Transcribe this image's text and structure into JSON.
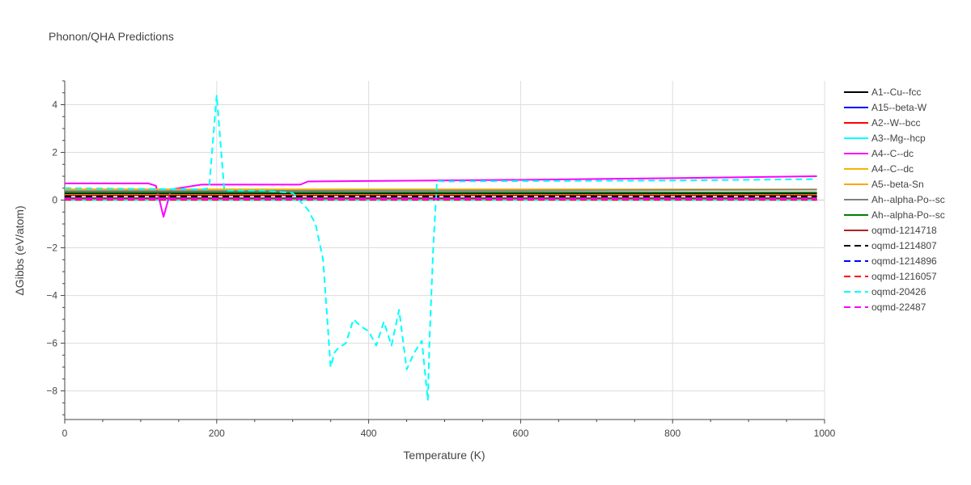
{
  "chart_data": {
    "type": "line",
    "title": "Phonon/QHA Predictions",
    "xlabel": "Temperature (K)",
    "ylabel": "ΔGibbs (eV/atom)",
    "xlim": [
      0,
      1000
    ],
    "ylim": [
      -9.2,
      5.0
    ],
    "xticks": [
      0,
      200,
      400,
      600,
      800,
      1000
    ],
    "yticks": [
      -8,
      -6,
      -4,
      -2,
      0,
      2,
      4
    ],
    "grid": true,
    "legend_position": "right",
    "series": [
      {
        "name": "A1--Cu--fcc",
        "color": "#000000",
        "dash": "solid",
        "x": [
          0,
          200,
          400,
          600,
          800,
          990
        ],
        "y": [
          0.28,
          0.28,
          0.28,
          0.28,
          0.28,
          0.28
        ]
      },
      {
        "name": "A15--beta-W",
        "color": "#0000ff",
        "dash": "solid",
        "x": [
          0,
          200,
          400,
          600,
          800,
          990
        ],
        "y": [
          0.08,
          0.08,
          0.08,
          0.08,
          0.08,
          0.08
        ]
      },
      {
        "name": "A2--W--bcc",
        "color": "#ff0000",
        "dash": "solid",
        "x": [
          0,
          200,
          400,
          600,
          800,
          990
        ],
        "y": [
          0.06,
          0.06,
          0.06,
          0.06,
          0.06,
          0.06
        ]
      },
      {
        "name": "A3--Mg--hcp",
        "color": "#00ffff",
        "dash": "solid",
        "x": [
          0,
          200,
          400,
          600,
          800,
          990
        ],
        "y": [
          0.0,
          0.0,
          0.0,
          0.0,
          0.0,
          0.0
        ]
      },
      {
        "name": "A4--C--dc",
        "color": "#ff00ff",
        "dash": "solid",
        "x": [
          0,
          110,
          120,
          130,
          140,
          160,
          180,
          200,
          300,
          310,
          320,
          400,
          600,
          800,
          990
        ],
        "y": [
          0.7,
          0.7,
          0.6,
          -0.7,
          0.45,
          0.55,
          0.65,
          0.65,
          0.65,
          0.65,
          0.78,
          0.8,
          0.85,
          0.92,
          1.0
        ]
      },
      {
        "name": "A4--C--dc",
        "color": "#f4b400",
        "dash": "solid",
        "x": [
          0,
          200,
          400,
          600,
          800,
          990
        ],
        "y": [
          0.45,
          0.45,
          0.45,
          0.45,
          0.45,
          0.45
        ]
      },
      {
        "name": "A5--beta-Sn",
        "color": "#ffa500",
        "dash": "solid",
        "x": [
          0,
          200,
          400,
          600,
          800,
          990
        ],
        "y": [
          0.22,
          0.22,
          0.22,
          0.22,
          0.22,
          0.22
        ]
      },
      {
        "name": "Ah--alpha-Po--sc",
        "color": "#808080",
        "dash": "solid",
        "x": [
          0,
          200,
          400,
          600,
          800,
          990
        ],
        "y": [
          0.38,
          0.38,
          0.4,
          0.4,
          0.42,
          0.44
        ]
      },
      {
        "name": "Ah--alpha-Po--sc",
        "color": "#008000",
        "dash": "solid",
        "x": [
          0,
          200,
          400,
          600,
          800,
          990
        ],
        "y": [
          0.32,
          0.32,
          0.32,
          0.32,
          0.32,
          0.32
        ]
      },
      {
        "name": "oqmd-1214718",
        "color": "#b22222",
        "dash": "solid",
        "x": [
          0,
          200,
          400,
          600,
          800,
          990
        ],
        "y": [
          0.2,
          0.2,
          0.2,
          0.2,
          0.2,
          0.2
        ]
      },
      {
        "name": "oqmd-1214807",
        "color": "#000000",
        "dash": "dash",
        "x": [
          0,
          200,
          400,
          600,
          800,
          990
        ],
        "y": [
          0.15,
          0.15,
          0.15,
          0.15,
          0.15,
          0.15
        ]
      },
      {
        "name": "oqmd-1214896",
        "color": "#0000ff",
        "dash": "dash",
        "x": [
          0,
          200,
          400,
          600,
          800,
          990
        ],
        "y": [
          0.03,
          0.03,
          0.03,
          0.03,
          0.03,
          0.03
        ]
      },
      {
        "name": "oqmd-1216057",
        "color": "#ff0000",
        "dash": "dash",
        "x": [
          0,
          200,
          400,
          600,
          800,
          990
        ],
        "y": [
          0.01,
          0.01,
          0.01,
          0.01,
          0.01,
          0.01
        ]
      },
      {
        "name": "oqmd-20426",
        "color": "#00ffff",
        "dash": "dash",
        "x": [
          0,
          180,
          190,
          200,
          210,
          220,
          260,
          300,
          320,
          330,
          340,
          350,
          355,
          360,
          370,
          380,
          390,
          400,
          410,
          420,
          430,
          440,
          450,
          460,
          470,
          478,
          480,
          485,
          490,
          500,
          600,
          800,
          990
        ],
        "y": [
          0.5,
          0.45,
          0.5,
          4.4,
          0.4,
          0.4,
          0.4,
          0.3,
          -0.4,
          -1.0,
          -2.5,
          -7.0,
          -6.4,
          -6.2,
          -6.0,
          -5.0,
          -5.3,
          -5.5,
          -6.1,
          -5.1,
          -6.1,
          -4.6,
          -7.1,
          -6.4,
          -5.9,
          -8.4,
          -6.0,
          -2.0,
          0.8,
          0.78,
          0.8,
          0.82,
          0.88
        ]
      },
      {
        "name": "oqmd-22487",
        "color": "#ff00ff",
        "dash": "dash",
        "x": [
          0,
          200,
          400,
          600,
          800,
          990
        ],
        "y": [
          0.05,
          0.05,
          0.05,
          0.05,
          0.05,
          0.05
        ]
      }
    ]
  }
}
